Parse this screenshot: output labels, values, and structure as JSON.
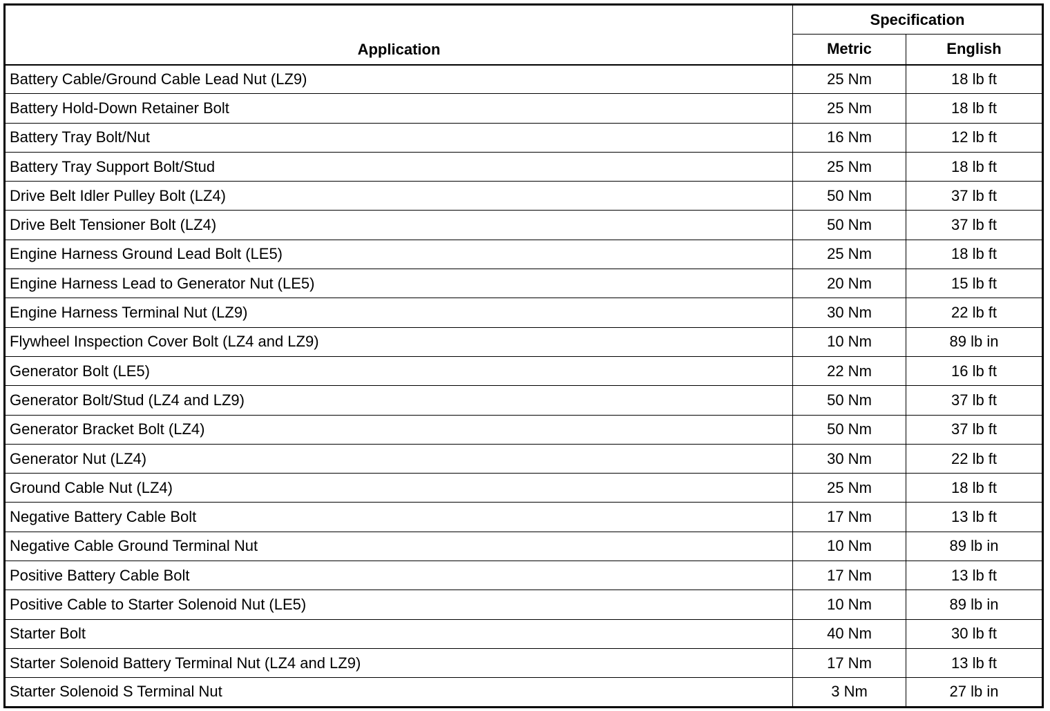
{
  "headers": {
    "application": "Application",
    "specification": "Specification",
    "metric": "Metric",
    "english": "English"
  },
  "rows": [
    {
      "application": "Battery Cable/Ground Cable Lead Nut (LZ9)",
      "metric": "25 Nm",
      "english": "18 lb ft"
    },
    {
      "application": "Battery Hold-Down Retainer Bolt",
      "metric": "25 Nm",
      "english": "18 lb ft"
    },
    {
      "application": "Battery Tray Bolt/Nut",
      "metric": "16 Nm",
      "english": "12 lb ft"
    },
    {
      "application": "Battery Tray Support Bolt/Stud",
      "metric": "25 Nm",
      "english": "18 lb ft"
    },
    {
      "application": "Drive Belt Idler Pulley Bolt (LZ4)",
      "metric": "50 Nm",
      "english": "37 lb ft"
    },
    {
      "application": "Drive Belt Tensioner Bolt (LZ4)",
      "metric": "50 Nm",
      "english": "37 lb ft"
    },
    {
      "application": "Engine Harness Ground Lead Bolt (LE5)",
      "metric": "25 Nm",
      "english": "18 lb ft"
    },
    {
      "application": "Engine Harness Lead to Generator Nut (LE5)",
      "metric": "20 Nm",
      "english": "15 lb ft"
    },
    {
      "application": "Engine Harness Terminal Nut (LZ9)",
      "metric": "30 Nm",
      "english": "22 lb ft"
    },
    {
      "application": "Flywheel Inspection Cover Bolt (LZ4 and LZ9)",
      "metric": "10 Nm",
      "english": "89 lb in"
    },
    {
      "application": "Generator Bolt (LE5)",
      "metric": "22 Nm",
      "english": "16 lb ft"
    },
    {
      "application": "Generator Bolt/Stud (LZ4 and LZ9)",
      "metric": "50 Nm",
      "english": "37 lb ft"
    },
    {
      "application": "Generator Bracket Bolt (LZ4)",
      "metric": "50 Nm",
      "english": "37 lb ft"
    },
    {
      "application": "Generator Nut (LZ4)",
      "metric": "30 Nm",
      "english": "22 lb ft"
    },
    {
      "application": "Ground Cable Nut (LZ4)",
      "metric": "25 Nm",
      "english": "18 lb ft"
    },
    {
      "application": "Negative Battery Cable Bolt",
      "metric": "17 Nm",
      "english": "13 lb ft"
    },
    {
      "application": "Negative Cable Ground Terminal Nut",
      "metric": "10 Nm",
      "english": "89 lb in"
    },
    {
      "application": "Positive Battery Cable Bolt",
      "metric": "17 Nm",
      "english": "13 lb ft"
    },
    {
      "application": "Positive Cable to Starter Solenoid Nut (LE5)",
      "metric": "10 Nm",
      "english": "89 lb in"
    },
    {
      "application": "Starter Bolt",
      "metric": "40 Nm",
      "english": "30 lb ft"
    },
    {
      "application": "Starter Solenoid Battery Terminal Nut (LZ4 and LZ9)",
      "metric": "17 Nm",
      "english": "13 lb ft"
    },
    {
      "application": "Starter Solenoid S Terminal Nut",
      "metric": "3 Nm",
      "english": "27 lb in"
    }
  ]
}
